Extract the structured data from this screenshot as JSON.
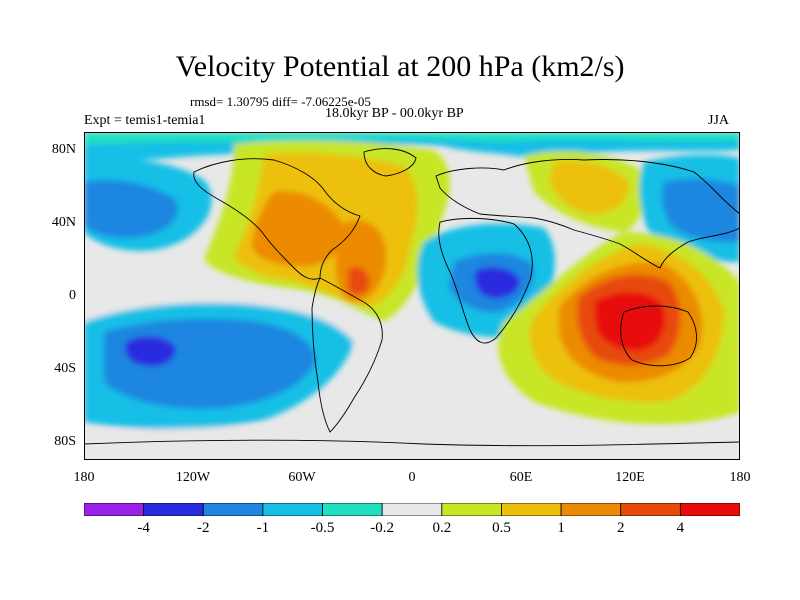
{
  "title": "Velocity Potential at 200 hPa (km2/s)",
  "stats_text": "rmsd= 1.30795  diff= -7.06225e-05",
  "period_text": "18.0kyr BP - 00.0kyr BP",
  "experiment_text": "Expt = temis1-temia1",
  "season_text": "JJA",
  "map": {
    "projection": "cylindrical-equidistant",
    "lon_range": [
      -180,
      180
    ],
    "lat_range": [
      -90,
      90
    ],
    "lat_labels": [
      "80N",
      "40N",
      "0",
      "40S",
      "80S"
    ],
    "lon_labels": [
      "180",
      "120W",
      "60W",
      "0",
      "60E",
      "120E",
      "180"
    ],
    "field_min_region": "southeast Pacific",
    "field_max_region": "Indonesia / western Pacific"
  },
  "colorbar": {
    "levels": [
      "-4",
      "-2",
      "-1",
      "-0.5",
      "-0.2",
      "0.2",
      "0.5",
      "1",
      "2",
      "4"
    ],
    "colors": [
      "#9a22e8",
      "#2a2adf",
      "#1f86e0",
      "#17bfe6",
      "#20e0c0",
      "#e8e8e8",
      "#c8e626",
      "#ecc00a",
      "#ec8a06",
      "#e84a08",
      "#e80c08"
    ]
  }
}
